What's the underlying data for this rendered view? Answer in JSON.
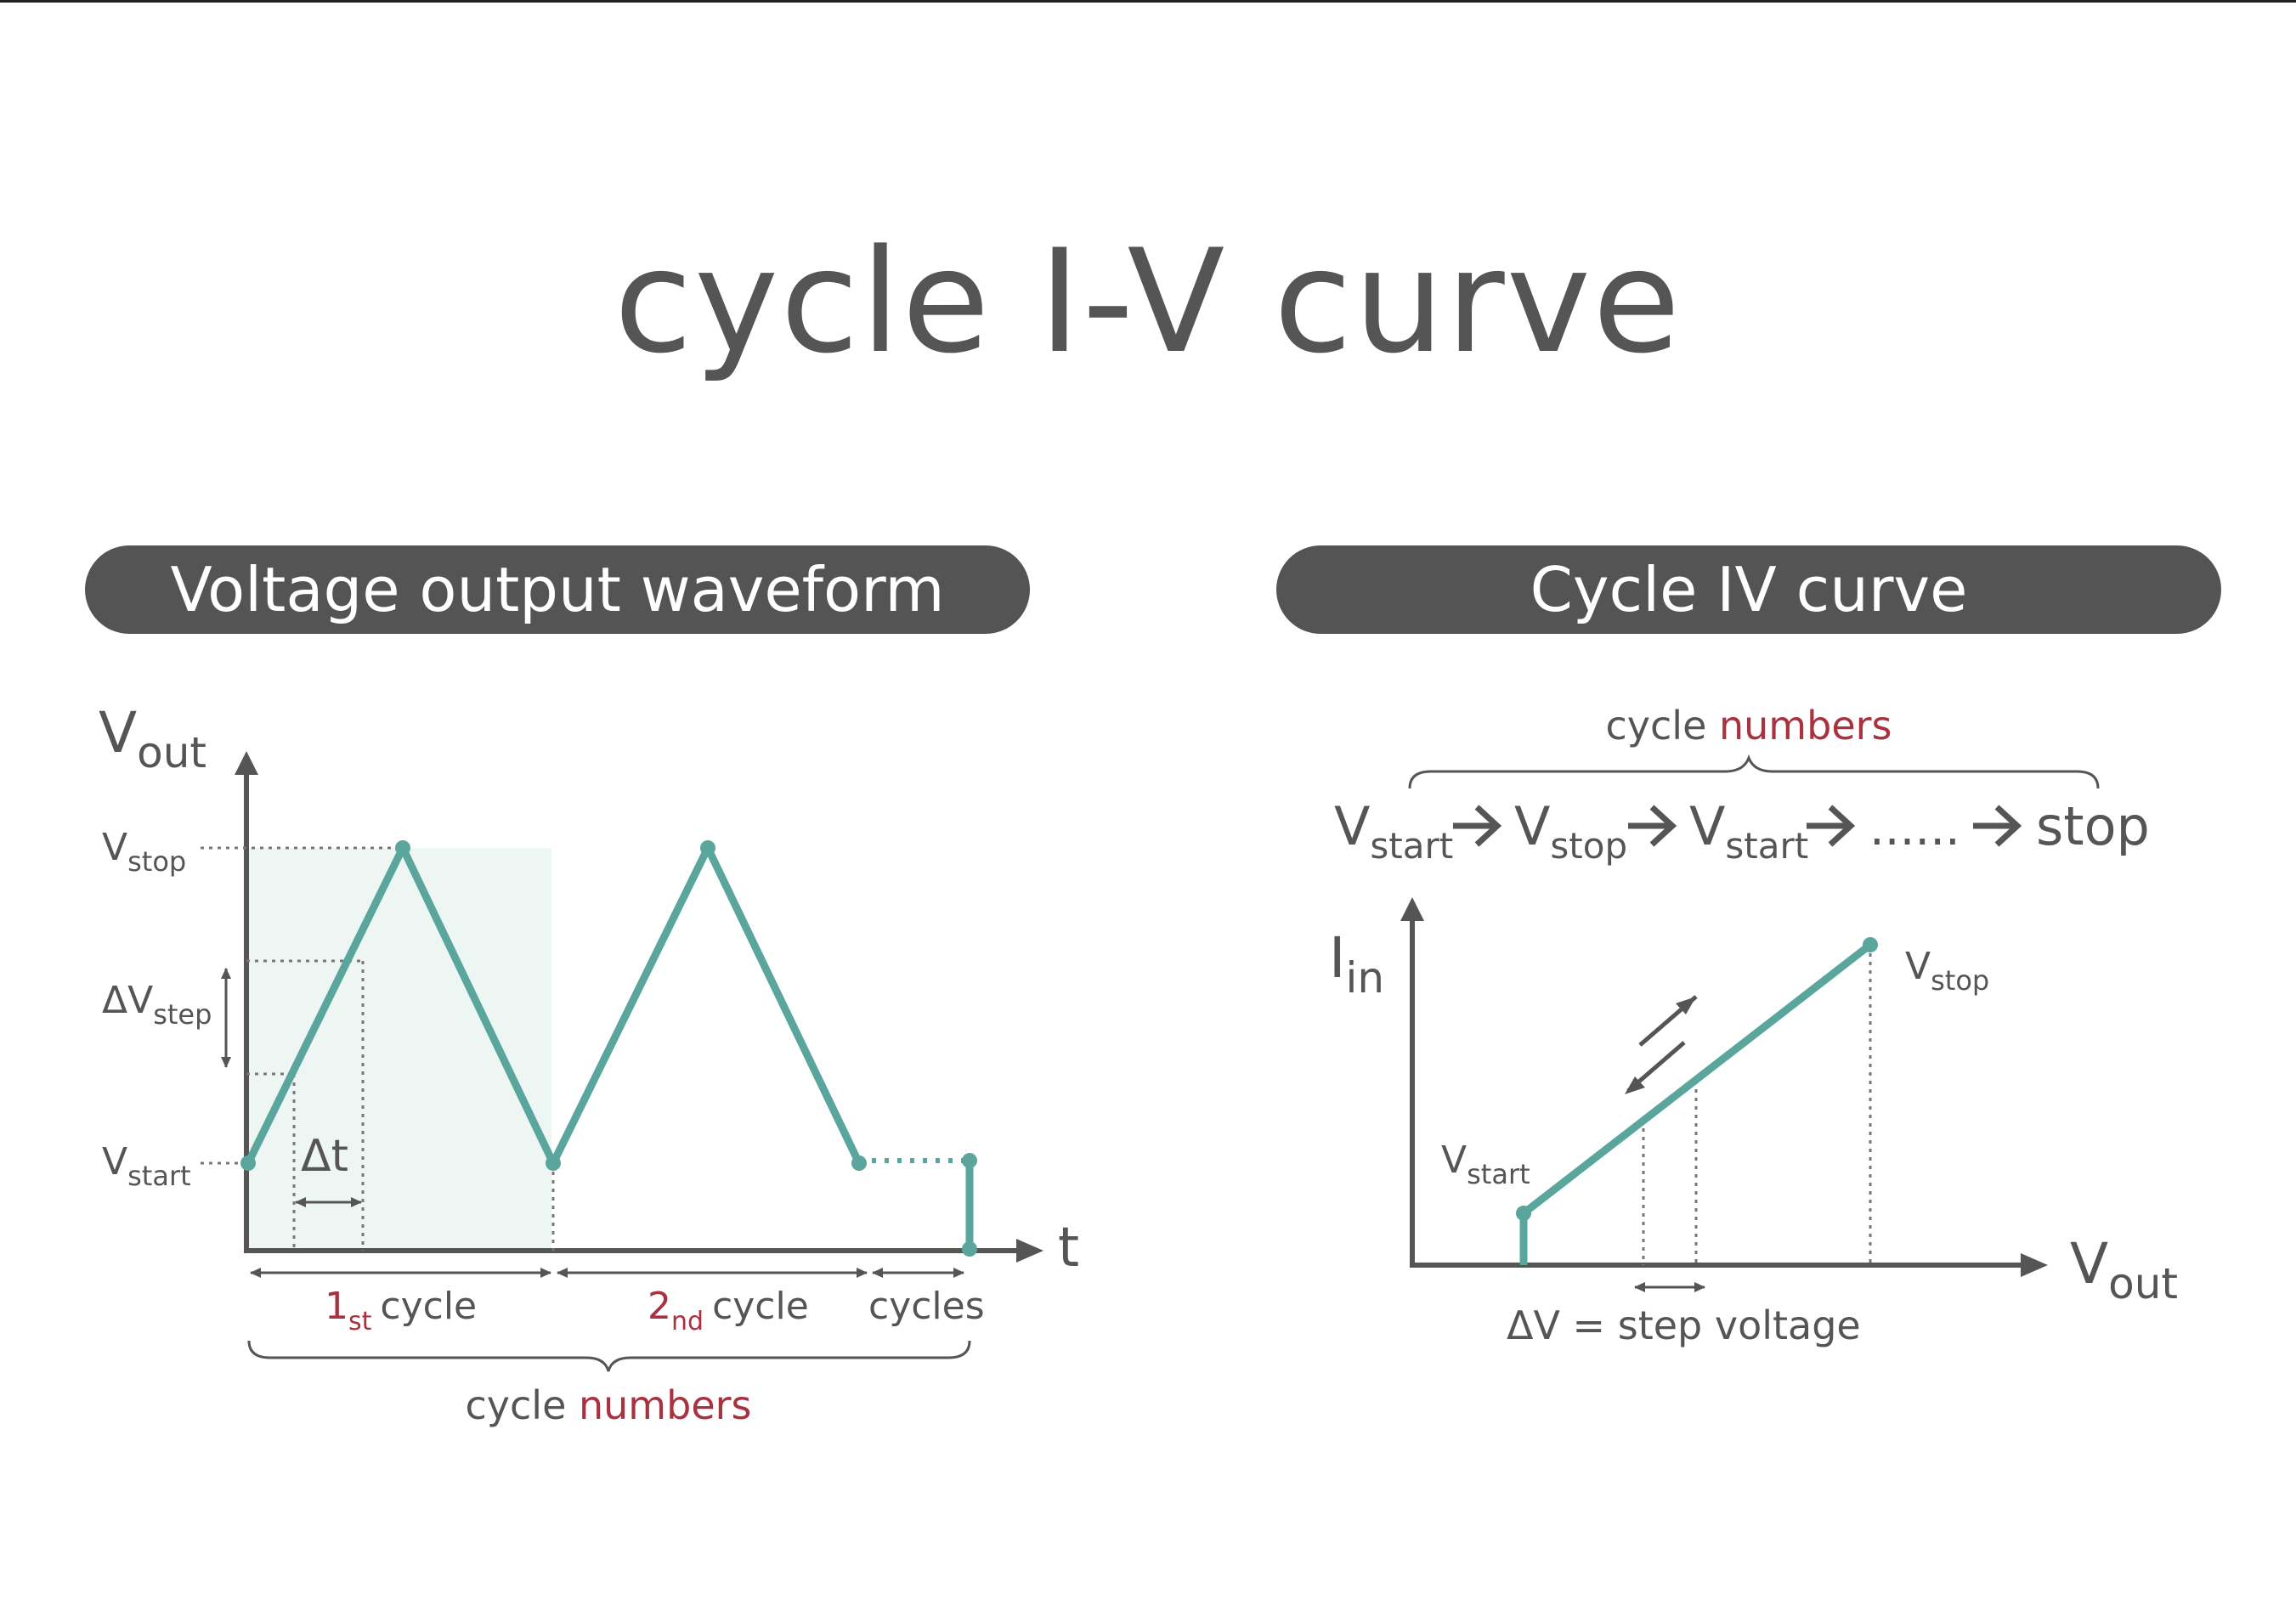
{
  "title": "cycle I-V curve",
  "colors": {
    "curve": "#5aa59c",
    "shade": "#eef6f4",
    "text": "#555555",
    "accent": "#a83240",
    "pill": "#545454"
  },
  "left_panel": {
    "header": "Voltage output waveform",
    "y_axis_main": "V",
    "y_axis_sub": "out",
    "x_axis": "t",
    "v_stop_main": "V",
    "v_stop_sub": "stop",
    "dv_step_main": "ΔV",
    "dv_step_sub": "step",
    "v_start_main": "V",
    "v_start_sub": "start",
    "dt": "Δt",
    "cycle1_num": "1",
    "cycle1_sup": "st",
    "cycle1_word": "cycle",
    "cycle2_num": "2",
    "cycle2_sup": "nd",
    "cycle2_word": "cycle",
    "cycles": "cycles",
    "brace_word": "cycle",
    "brace_red": "numbers"
  },
  "right_panel": {
    "header": "Cycle IV curve",
    "brace_word": "cycle",
    "brace_red": "numbers",
    "seq": [
      {
        "main": "V",
        "sub": "start"
      },
      {
        "main": "V",
        "sub": "stop"
      },
      {
        "main": "V",
        "sub": "start"
      },
      {
        "main": "......",
        "sub": ""
      },
      {
        "main": "stop",
        "sub": ""
      }
    ],
    "y_axis_main": "I",
    "y_axis_sub": "in",
    "x_axis_main": "V",
    "x_axis_sub": "out",
    "v_stop_main": "V",
    "v_stop_sub": "stop",
    "v_start_main": "V",
    "v_start_sub": "start",
    "step_label": "ΔV = step voltage"
  }
}
